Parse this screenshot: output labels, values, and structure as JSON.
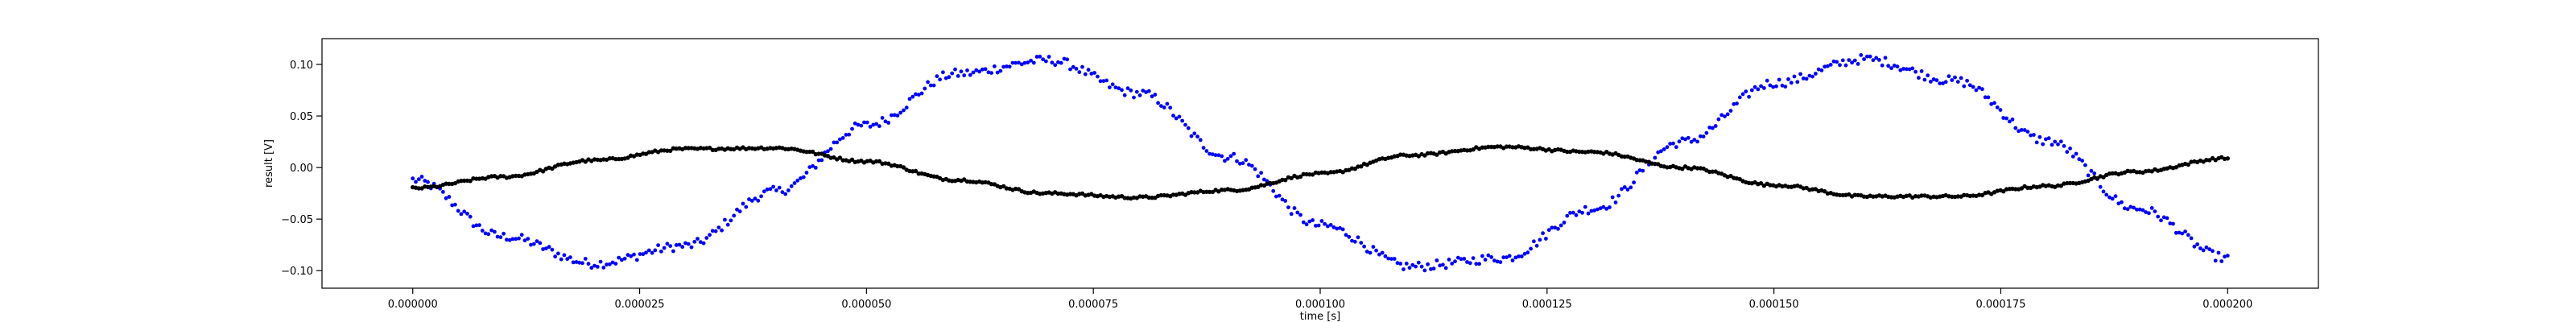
{
  "chart_data": {
    "type": "scatter",
    "xlabel": "time [s]",
    "ylabel": "result [V]",
    "xlim": [
      -1e-05,
      0.00021
    ],
    "ylim": [
      -0.117,
      0.125
    ],
    "x_ticks": [
      0.0,
      2.5e-05,
      5e-05,
      7.5e-05,
      0.0001,
      0.000125,
      0.00015,
      0.000175,
      0.0002
    ],
    "x_tick_labels": [
      "0.000000",
      "0.000025",
      "0.000050",
      "0.000075",
      "0.000100",
      "0.000125",
      "0.000150",
      "0.000175",
      "0.000200"
    ],
    "y_ticks": [
      -0.1,
      -0.05,
      0.0,
      0.05,
      0.1
    ],
    "y_tick_labels": [
      "−0.10",
      "−0.05",
      "0.00",
      "0.05",
      "0.10"
    ],
    "grid": false,
    "n_points": 600,
    "series": [
      {
        "color": "#0000ff",
        "marker": "dot",
        "x_start": 0.0,
        "x_end": 0.0002,
        "x": [
          0.0,
          1e-05,
          2e-05,
          3e-05,
          4e-05,
          5e-05,
          6e-05,
          7e-05,
          8e-05,
          9e-05,
          0.0001,
          0.00011,
          0.00012,
          0.00013,
          0.00014,
          0.00015,
          0.00016,
          0.00017,
          0.00018,
          0.00019,
          0.0002
        ],
        "y": [
          -0.012,
          -0.067,
          -0.093,
          -0.076,
          -0.023,
          0.041,
          0.091,
          0.104,
          0.072,
          0.01,
          -0.056,
          -0.096,
          -0.088,
          -0.04,
          0.025,
          0.082,
          0.105,
          0.084,
          0.026,
          -0.04,
          -0.088
        ]
      },
      {
        "color": "#000000",
        "marker": "dot",
        "x_start": 0.0,
        "x_end": 0.0002,
        "x": [
          0.0,
          1e-05,
          2e-05,
          3e-05,
          4e-05,
          5e-05,
          6e-05,
          7e-05,
          8e-05,
          9e-05,
          0.0001,
          0.00011,
          0.00012,
          0.00013,
          0.00014,
          0.00015,
          0.00016,
          0.00017,
          0.00018,
          0.00019,
          0.0002
        ],
        "y": [
          -0.02,
          -0.009,
          0.007,
          0.018,
          0.019,
          0.006,
          -0.012,
          -0.025,
          -0.029,
          -0.022,
          -0.006,
          0.012,
          0.02,
          0.015,
          0.0,
          -0.017,
          -0.028,
          -0.028,
          -0.018,
          -0.004,
          0.009
        ]
      }
    ]
  }
}
